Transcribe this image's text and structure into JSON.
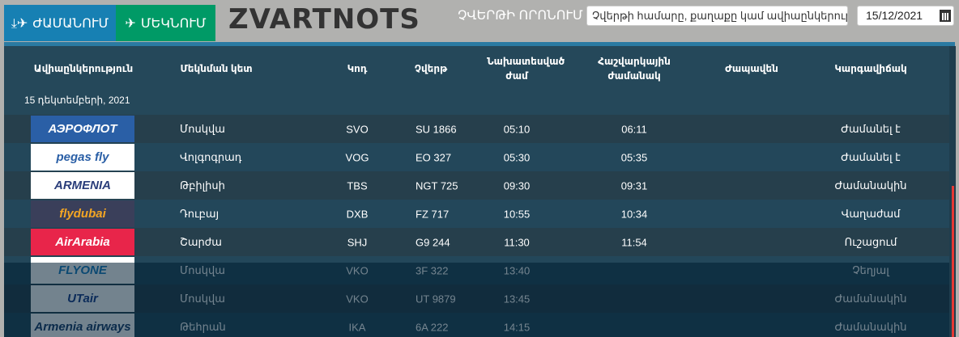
{
  "brand": "ZVARTNOTS",
  "tabs": {
    "arrivals": "ԺԱՄԱՆՈՒՄ",
    "departures": "ՄԵԿՆՈՒՄ"
  },
  "search": {
    "label": "ՉՎԵՐԹԻ ՈՐՈՆՈՒՄ",
    "placeholder": "Չվերթի համարը, քաղաքը կամ ավիաընկերությունը",
    "date": "15/12/2021"
  },
  "columns": {
    "airline": "Ավիաընկերություն",
    "origin": "Մեկնման կետ",
    "code": "Կոդ",
    "flight": "Չվերթ",
    "scheduled": "Նախատեսված ժամ",
    "estimated": "Հաշվարկային ժամանակ",
    "belt": "Ժապավեն",
    "status": "Կարգավիճակ"
  },
  "date_group": "15 դեկտեմբերի, 2021",
  "colors": {
    "arrivals": "#1780b3",
    "departures": "#009a66",
    "table": "#25485a"
  },
  "flights": [
    {
      "logo": "АЭРОФЛОТ",
      "logo_color": "#2a5fa6",
      "logo_bg": "#2a5fa6",
      "logo_fg": "#fff",
      "origin": "Մոսկվա",
      "code": "SVO",
      "flight": "SU 1866",
      "scheduled": "05:10",
      "estimated": "06:11",
      "belt": "",
      "status": "Ժամանել է"
    },
    {
      "logo": "pegas fly",
      "logo_bg": "#fff",
      "logo_fg": "#2a5fa6",
      "origin": "Վոլգոգրադ",
      "code": "VOG",
      "flight": "EO 327",
      "scheduled": "05:30",
      "estimated": "05:35",
      "belt": "",
      "status": "Ժամանել է"
    },
    {
      "logo": "ARMENIA",
      "logo_bg": "#fff",
      "logo_fg": "#2a3d7a",
      "origin": "Թբիլիսի",
      "code": "TBS",
      "flight": "NGT 725",
      "scheduled": "09:30",
      "estimated": "09:31",
      "belt": "",
      "status": "Ժամանակին"
    },
    {
      "logo": "flydubai",
      "logo_bg": "#3a3f5a",
      "logo_fg": "#f5a623",
      "origin": "Դուբայ",
      "code": "DXB",
      "flight": "FZ 717",
      "scheduled": "10:55",
      "estimated": "10:34",
      "belt": "",
      "status": "Վաղաժամ"
    },
    {
      "logo": "AirArabia",
      "logo_bg": "#e8254a",
      "logo_fg": "#fff",
      "origin": "Շարժա",
      "code": "SHJ",
      "flight": "G9 244",
      "scheduled": "11:30",
      "estimated": "11:54",
      "belt": "",
      "status": "Ուշացում"
    },
    {
      "logo": "FLYONE",
      "logo_bg": "#fff",
      "logo_fg": "#1a7ec2",
      "origin": "Մոսկվա",
      "code": "VKO",
      "flight": "3F 322",
      "scheduled": "13:40",
      "estimated": "",
      "belt": "",
      "status": "Չեղյալ"
    },
    {
      "logo": "UTair",
      "logo_bg": "#fff",
      "logo_fg": "#1a3d8a",
      "origin": "Մոսկվա",
      "code": "VKO",
      "flight": "UT 9879",
      "scheduled": "13:45",
      "estimated": "",
      "belt": "",
      "status": "Ժամանակին"
    },
    {
      "logo": "Armenia airways",
      "logo_bg": "#fff",
      "logo_fg": "#1a3d6a",
      "origin": "Թեհրան",
      "code": "IKA",
      "flight": "6A 222",
      "scheduled": "14:15",
      "estimated": "",
      "belt": "",
      "status": "Ժամանակին"
    }
  ]
}
